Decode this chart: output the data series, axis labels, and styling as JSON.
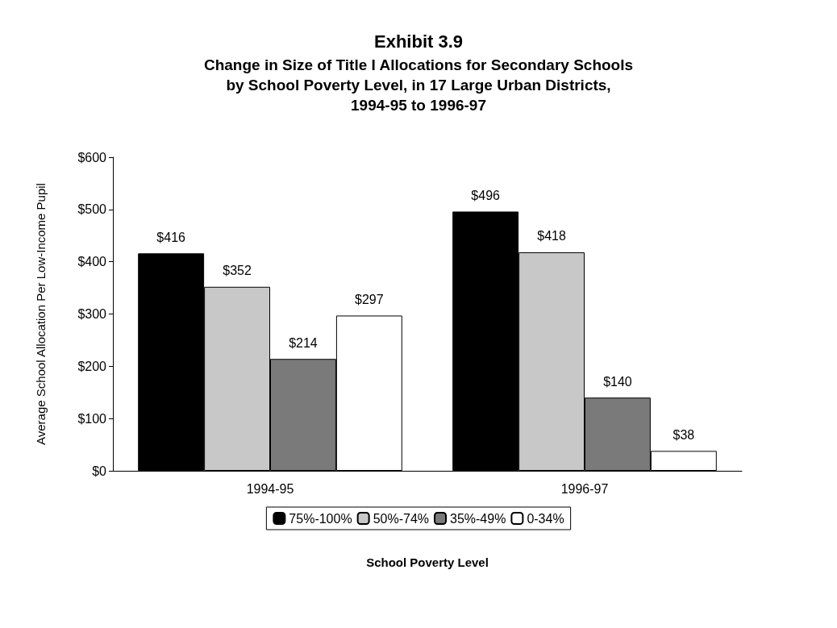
{
  "chart_data": {
    "type": "bar",
    "title": "Exhibit 3.9",
    "subtitle": "Change in Size of Title I Allocations for Secondary Schools\nby School Poverty Level, in 17 Large Urban Districts,\n1994-95 to 1996-97",
    "xlabel": "School Poverty Level",
    "ylabel": "Average School Allocation Per Low-Income Pupil",
    "categories": [
      "1994-95",
      "1996-97"
    ],
    "series": [
      {
        "name": "75%-100%",
        "color": "#000000",
        "values": [
          416,
          496
        ],
        "value_labels": [
          "$416",
          "$496"
        ]
      },
      {
        "name": "50%-74%",
        "color": "#c8c8c8",
        "values": [
          352,
          418
        ],
        "value_labels": [
          "$352",
          "$418"
        ]
      },
      {
        "name": "35%-49%",
        "color": "#7a7a7a",
        "values": [
          214,
          140
        ],
        "value_labels": [
          "$214",
          "$140"
        ]
      },
      {
        "name": "0-34%",
        "color": "#ffffff",
        "values": [
          297,
          38
        ],
        "value_labels": [
          "$297",
          "$38"
        ]
      }
    ],
    "ylim": [
      0,
      600
    ],
    "yticks": [
      {
        "value": 0,
        "label": "$0"
      },
      {
        "value": 100,
        "label": "$100"
      },
      {
        "value": 200,
        "label": "$200"
      },
      {
        "value": 300,
        "label": "$300"
      },
      {
        "value": 400,
        "label": "$400"
      },
      {
        "value": 500,
        "label": "$500"
      },
      {
        "value": 600,
        "label": "$600"
      }
    ],
    "grid": false,
    "legend": "bottom"
  }
}
